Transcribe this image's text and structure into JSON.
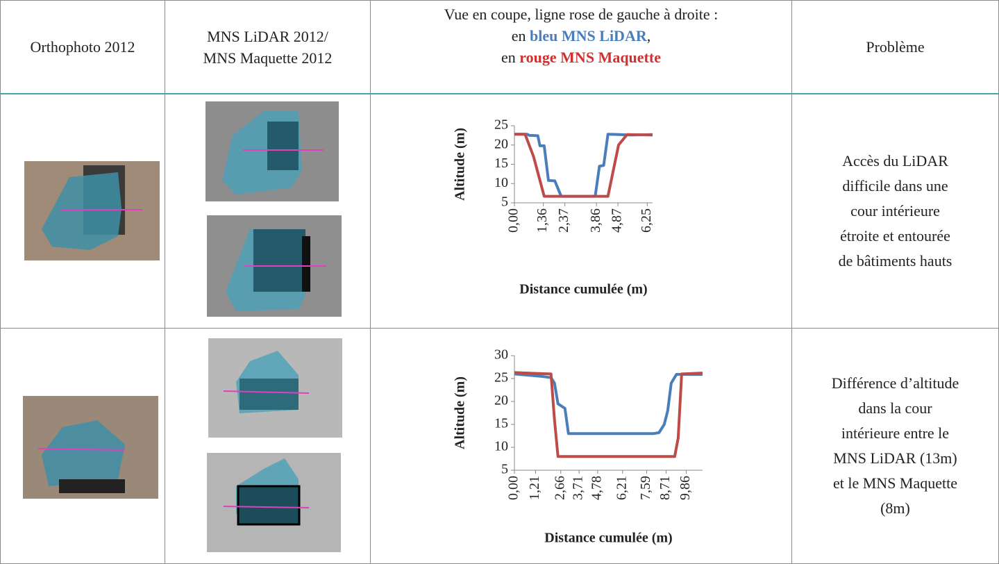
{
  "table": {
    "header": [
      {
        "lines": [
          "Orthophoto 2012"
        ]
      },
      {
        "lines": [
          "MNS LiDAR 2012/",
          "MNS Maquette 2012"
        ]
      },
      {
        "intro": "Vue en coupe, ligne rose de gauche à droite  :",
        "blue": [
          "en",
          "bleu MNS LiDAR",
          ","
        ],
        "red": [
          "en",
          "rouge MNS Maquette"
        ]
      },
      {
        "lines": [
          "Problème"
        ]
      }
    ],
    "rows": [
      {
        "problem": [
          "Accès du LiDAR",
          "difficile dans une",
          "cour intérieure",
          "étroite et entourée",
          "de bâtiments hauts"
        ]
      },
      {
        "problem": [
          "Différence d’altitude",
          "dans la cour",
          "intérieure entre le",
          "MNS LiDAR (13m)",
          "et le MNS Maquette",
          "(8m)"
        ]
      }
    ]
  },
  "chart_data": [
    {
      "type": "line",
      "y_label": "Altitude (m)",
      "x_label": "Distance cumulée (m)",
      "xlim": [
        0,
        6.5
      ],
      "xticks": [
        {
          "value": 0,
          "label": "0,00"
        },
        {
          "value": 1.36,
          "label": "1,36"
        },
        {
          "value": 2.37,
          "label": "2,37"
        },
        {
          "value": 3.86,
          "label": "3,86"
        },
        {
          "value": 4.87,
          "label": "4,87"
        },
        {
          "value": 6.25,
          "label": "6,25"
        }
      ],
      "ylim": [
        5,
        25
      ],
      "yticks": [
        5,
        10,
        15,
        20,
        25
      ],
      "series": [
        {
          "name": "MNS LiDAR",
          "color": "#4a7ebb",
          "x": [
            0,
            0.6,
            0.7,
            1.1,
            1.2,
            1.4,
            1.6,
            1.9,
            2.2,
            3.8,
            4.0,
            4.2,
            4.4,
            5.5,
            6.5
          ],
          "values": [
            22.8,
            22.8,
            22.5,
            22.4,
            19.8,
            19.8,
            10.8,
            10.7,
            6.7,
            6.7,
            14.5,
            14.7,
            22.8,
            22.6,
            22.7
          ]
        },
        {
          "name": "MNS Maquette",
          "color": "#be4b48",
          "x": [
            0,
            0.5,
            0.9,
            1.4,
            4.4,
            4.9,
            5.3,
            6.5
          ],
          "values": [
            22.8,
            22.8,
            17,
            6.7,
            6.7,
            20,
            22.7,
            22.6
          ]
        }
      ]
    },
    {
      "type": "line",
      "y_label": "Altitude (m)",
      "x_label": "Distance cumulée (m)",
      "xlim": [
        0,
        10.8
      ],
      "xticks": [
        {
          "value": 0,
          "label": "0,00"
        },
        {
          "value": 1.21,
          "label": "1,21"
        },
        {
          "value": 2.66,
          "label": "2,66"
        },
        {
          "value": 3.71,
          "label": "3,71"
        },
        {
          "value": 4.78,
          "label": "4,78"
        },
        {
          "value": 6.21,
          "label": "6,21"
        },
        {
          "value": 7.59,
          "label": "7,59"
        },
        {
          "value": 8.71,
          "label": "8,71"
        },
        {
          "value": 9.86,
          "label": "9,86"
        }
      ],
      "ylim": [
        5,
        30
      ],
      "yticks": [
        5,
        10,
        15,
        20,
        25,
        30
      ],
      "series": [
        {
          "name": "MNS LiDAR",
          "color": "#4a7ebb",
          "x": [
            0,
            1.5,
            2.1,
            2.3,
            2.5,
            2.9,
            3.1,
            8,
            8.3,
            8.6,
            8.8,
            9.0,
            9.3,
            10.8
          ],
          "values": [
            26,
            25.5,
            25.2,
            24,
            19.5,
            18.5,
            13,
            13,
            13.2,
            15,
            18,
            24,
            25.9,
            25.9
          ]
        },
        {
          "name": "MNS Maquette",
          "color": "#be4b48",
          "x": [
            0,
            2.1,
            2.3,
            2.5,
            9.2,
            9.4,
            9.6,
            10.8
          ],
          "values": [
            26.3,
            26,
            16,
            8,
            8,
            12,
            26,
            26.2
          ]
        }
      ]
    }
  ]
}
